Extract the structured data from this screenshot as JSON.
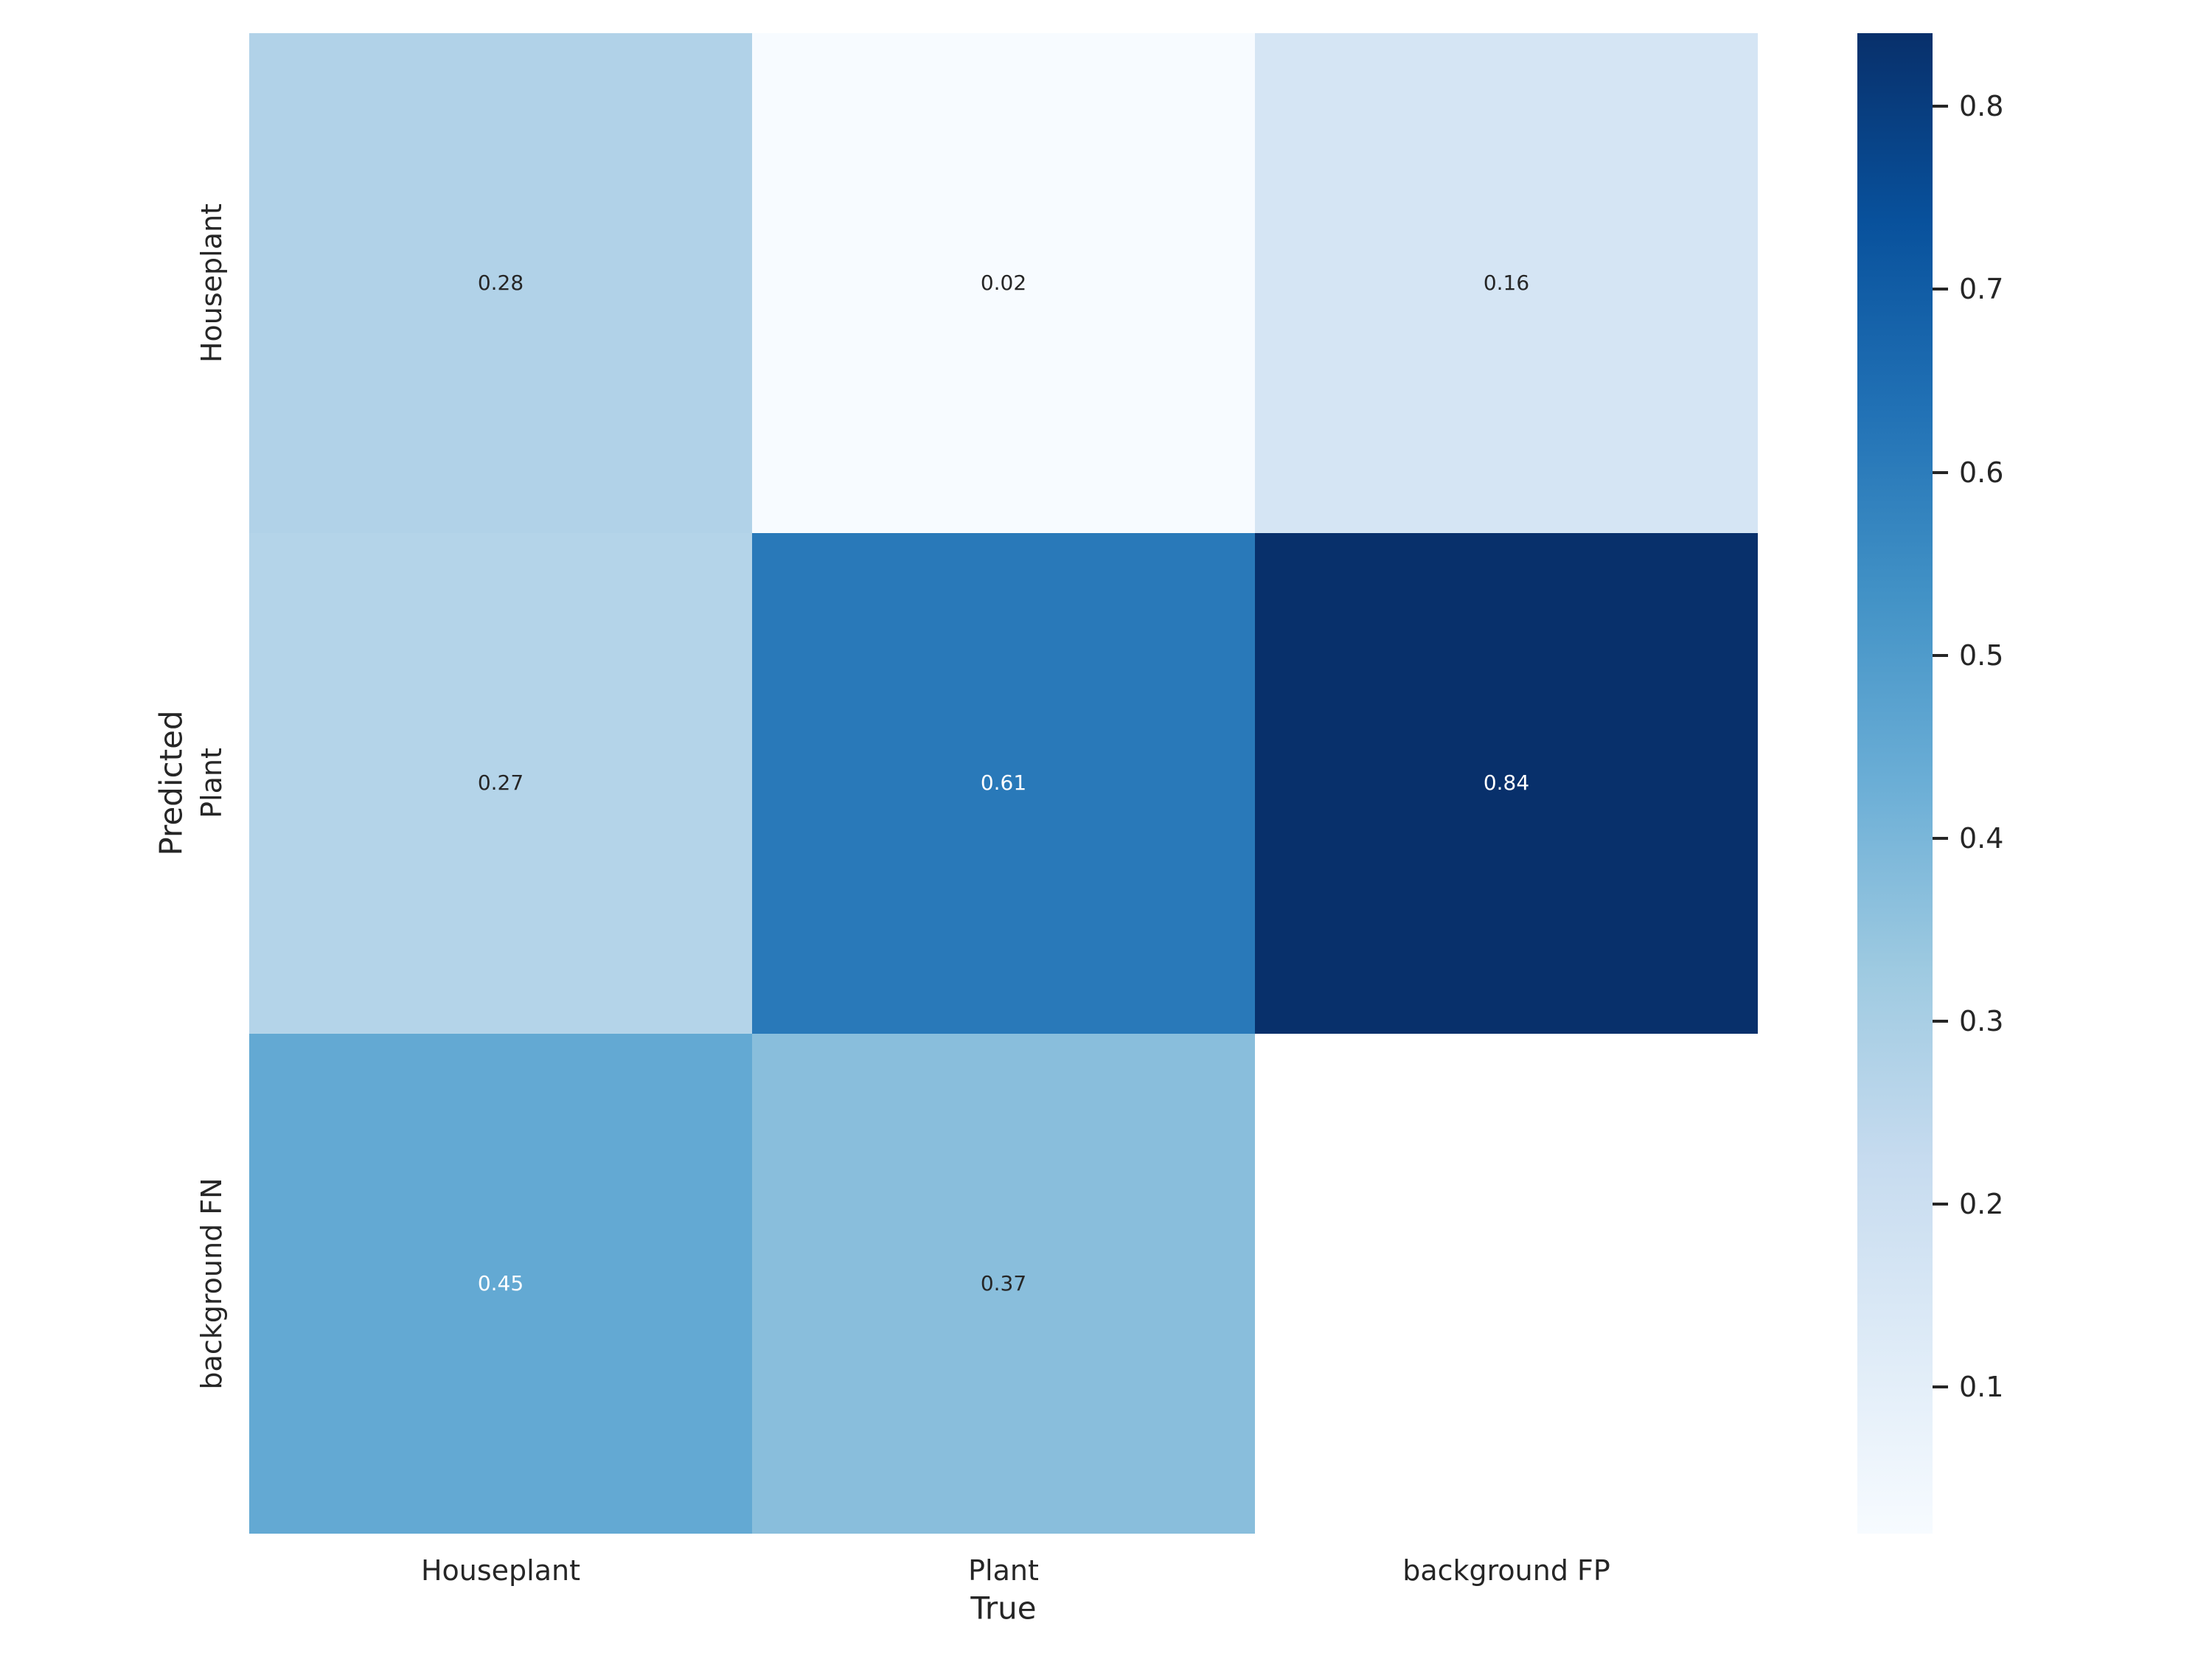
{
  "figure": {
    "kind": "confusion-matrix-heatmap",
    "background_color": "#ffffff",
    "text_color": "#262626"
  },
  "chart_data": {
    "type": "heatmap",
    "title": "",
    "xlabel": "True",
    "ylabel": "Predicted",
    "x_categories": [
      "Houseplant",
      "Plant",
      "background FP"
    ],
    "y_categories": [
      "Houseplant",
      "Plant",
      "background FN"
    ],
    "values": [
      [
        0.28,
        0.02,
        0.16
      ],
      [
        0.27,
        0.61,
        0.84
      ],
      [
        0.45,
        0.37,
        null
      ]
    ],
    "cell_colors": [
      [
        "#b1d2e8",
        "#f7fbff",
        "#d5e5f4"
      ],
      [
        "#b4d4e9",
        "#2979b9",
        "#08306b"
      ],
      [
        "#63a9d3",
        "#89bedc",
        null
      ]
    ],
    "cell_text_colors": [
      [
        "#262626",
        "#262626",
        "#262626"
      ],
      [
        "#262626",
        "#ffffff",
        "#ffffff"
      ],
      [
        "#ffffff",
        "#262626",
        null
      ]
    ],
    "empty_cell_color": "#ffffff",
    "colormap": "Blues",
    "vmin": 0.02,
    "vmax": 0.84,
    "grid": false,
    "legend_position": "right-colorbar",
    "colorbar_ticks": [
      0.8,
      0.7,
      0.6,
      0.5,
      0.4,
      0.3,
      0.2,
      0.1
    ],
    "colorbar_gradient": [
      {
        "t": 0.0,
        "color": "#f7fbff"
      },
      {
        "t": 0.125,
        "color": "#deebf7"
      },
      {
        "t": 0.25,
        "color": "#c6dbef"
      },
      {
        "t": 0.375,
        "color": "#9ecae1"
      },
      {
        "t": 0.5,
        "color": "#6baed6"
      },
      {
        "t": 0.625,
        "color": "#4292c6"
      },
      {
        "t": 0.75,
        "color": "#2171b5"
      },
      {
        "t": 0.875,
        "color": "#08519c"
      },
      {
        "t": 1.0,
        "color": "#08306b"
      }
    ]
  }
}
